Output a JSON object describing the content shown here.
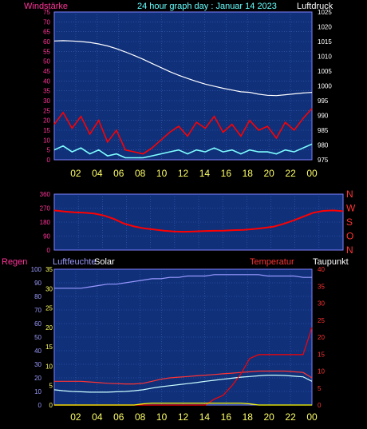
{
  "chart_data": [
    {
      "type": "line",
      "title": "24 hour graph day : Januar 14 2023",
      "left_axis_label": "Windstärke",
      "right_axis_label": "Luftdruck",
      "x_ticks": [
        "02",
        "04",
        "06",
        "08",
        "10",
        "12",
        "14",
        "16",
        "18",
        "20",
        "22",
        "00"
      ],
      "left_ticks": [
        "0",
        "5",
        "10",
        "15",
        "20",
        "25",
        "30",
        "35",
        "40",
        "45",
        "50",
        "55",
        "60",
        "65",
        "70",
        "75"
      ],
      "right_ticks": [
        "975",
        "980",
        "985",
        "990",
        "995",
        "1000",
        "1005",
        "1010",
        "1015",
        "1020",
        "1025"
      ],
      "ylim_left": [
        0,
        75
      ],
      "ylim_right": [
        975,
        1025
      ],
      "series": [
        {
          "color": "#ffffff",
          "axis": "right",
          "values": [
            1015.2,
            1015.3,
            1015.2,
            1015.0,
            1014.7,
            1014.2,
            1013.5,
            1012.6,
            1011.5,
            1010.3,
            1009.0,
            1007.6,
            1006.2,
            1004.8,
            1003.6,
            1002.5,
            1001.5,
            1000.6,
            999.9,
            999.2,
            998.6,
            998.0,
            997.8,
            997.2,
            996.8,
            996.7,
            997.0,
            997.3,
            997.6,
            997.8
          ]
        },
        {
          "color": "#ff0000",
          "axis": "left",
          "values": [
            18,
            24,
            16,
            22,
            13,
            20,
            9,
            15,
            5,
            4,
            3,
            6,
            10,
            14,
            17,
            12,
            19,
            16,
            22,
            14,
            18,
            12,
            20,
            15,
            17,
            11,
            19,
            15,
            21,
            26
          ]
        },
        {
          "color": "#7fffff",
          "axis": "left",
          "values": [
            5,
            7,
            4,
            6,
            3,
            5,
            2,
            3,
            1,
            1,
            1,
            2,
            3,
            4,
            5,
            3,
            5,
            4,
            6,
            4,
            5,
            3,
            5,
            4,
            4,
            3,
            5,
            4,
            6,
            8
          ]
        }
      ],
      "grid": true
    },
    {
      "type": "line",
      "left_ticks": [
        "0",
        "90",
        "180",
        "270",
        "360"
      ],
      "right_ticks": [
        "N",
        "W",
        "S",
        "O",
        "N"
      ],
      "ylim": [
        0,
        360
      ],
      "series": [
        {
          "color": "#ff0000",
          "values": [
            255,
            248,
            243,
            240,
            235,
            222,
            200,
            170,
            152,
            140,
            132,
            125,
            120,
            118,
            120,
            122,
            124,
            125,
            128,
            130,
            135,
            142,
            150,
            168,
            190,
            215,
            240,
            252,
            255,
            250
          ]
        }
      ],
      "grid": true
    },
    {
      "type": "line",
      "labels": {
        "regen": "Regen",
        "luftfeuchte": "Luftfeuchte",
        "solar": "Solar",
        "temperatur": "Temperatur",
        "taupunkt": "Taupunkt"
      },
      "x_ticks": [
        "02",
        "04",
        "06",
        "08",
        "10",
        "12",
        "14",
        "16",
        "18",
        "20",
        "22",
        "00"
      ],
      "ylim_humidity": [
        0,
        100
      ],
      "ylim_rain_solar": [
        0,
        35
      ],
      "ylim_temperature": [
        0,
        40
      ],
      "axis_ticks": {
        "humidity": [
          "0",
          "10",
          "20",
          "30",
          "40",
          "50",
          "60",
          "70",
          "80",
          "90",
          "100"
        ],
        "rain_solar": [
          "0",
          "5",
          "10",
          "15",
          "20",
          "25",
          "30",
          "35"
        ],
        "temperature": [
          "0",
          "5",
          "10",
          "15",
          "20",
          "25",
          "30",
          "35",
          "40"
        ]
      },
      "series": [
        {
          "color": "#9999ff",
          "axis": "humidity",
          "values": [
            86,
            86,
            86,
            86,
            87,
            88,
            89,
            89,
            90,
            91,
            92,
            93,
            93,
            94,
            94,
            95,
            95,
            95,
            96,
            96,
            96,
            96,
            96,
            96,
            95,
            95,
            95,
            95,
            94,
            94
          ]
        },
        {
          "color": "#ff3333",
          "axis": "temperature",
          "values": [
            7,
            7,
            7,
            7,
            6.8,
            6.6,
            6.4,
            6.3,
            6.2,
            6.2,
            6.4,
            7.0,
            7.6,
            8.0,
            8.2,
            8.4,
            8.6,
            8.8,
            9.0,
            9.2,
            9.4,
            9.6,
            9.8,
            10.0,
            10.0,
            10.0,
            10.0,
            9.8,
            9.6,
            8.0
          ]
        },
        {
          "color": "#ccffff",
          "axis": "temperature",
          "values": [
            4.5,
            4.2,
            4.0,
            3.9,
            3.8,
            3.8,
            3.8,
            3.9,
            4.0,
            4.2,
            4.5,
            5.0,
            5.4,
            5.7,
            6.0,
            6.3,
            6.6,
            7.0,
            7.3,
            7.6,
            7.9,
            8.2,
            8.4,
            8.6,
            8.8,
            8.8,
            8.7,
            8.5,
            8.3,
            7.0
          ]
        },
        {
          "color": "#ff0000",
          "axis": "rain_solar",
          "values": [
            0,
            0,
            0,
            0,
            0,
            0,
            0,
            0,
            0,
            0,
            0,
            0,
            0,
            0,
            0,
            0,
            0,
            0,
            1.5,
            2.5,
            5,
            8,
            12,
            13,
            13,
            13,
            13,
            13,
            13,
            20
          ]
        },
        {
          "color": "#ffff00",
          "axis": "rain_solar",
          "values": [
            0,
            0,
            0,
            0,
            0,
            0,
            0,
            0,
            0,
            0,
            0.3,
            0.5,
            0.5,
            0.5,
            0.5,
            0.5,
            0.5,
            0.5,
            0.5,
            0.5,
            0.5,
            0.5,
            0.3,
            0,
            0,
            0,
            0,
            0,
            0,
            0
          ]
        }
      ],
      "grid": true
    }
  ]
}
